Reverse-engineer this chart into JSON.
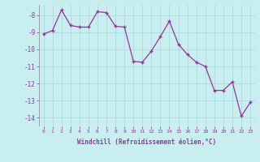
{
  "x": [
    0,
    1,
    2,
    3,
    4,
    5,
    6,
    7,
    8,
    9,
    10,
    11,
    12,
    13,
    14,
    15,
    16,
    17,
    18,
    19,
    20,
    21,
    22,
    23
  ],
  "y": [
    -9.1,
    -8.9,
    -7.7,
    -8.6,
    -8.7,
    -8.7,
    -7.8,
    -7.85,
    -8.65,
    -8.7,
    -10.7,
    -10.75,
    -10.1,
    -9.25,
    -8.35,
    -9.7,
    -10.3,
    -10.75,
    -11.0,
    -12.4,
    -12.4,
    -11.9,
    -13.9,
    -13.1
  ],
  "line_color": "#993399",
  "marker": "+",
  "background_color": "#c8eef0",
  "grid_color": "#aadddd",
  "ylim": [
    -14.5,
    -7.4
  ],
  "xlim": [
    -0.5,
    23.5
  ],
  "yticks": [
    -14,
    -13,
    -12,
    -11,
    -10,
    -9,
    -8
  ],
  "xticks": [
    0,
    1,
    2,
    3,
    4,
    5,
    6,
    7,
    8,
    9,
    10,
    11,
    12,
    13,
    14,
    15,
    16,
    17,
    18,
    19,
    20,
    21,
    22,
    23
  ],
  "xlabel": "Windchill (Refroidissement éolien,°C)"
}
